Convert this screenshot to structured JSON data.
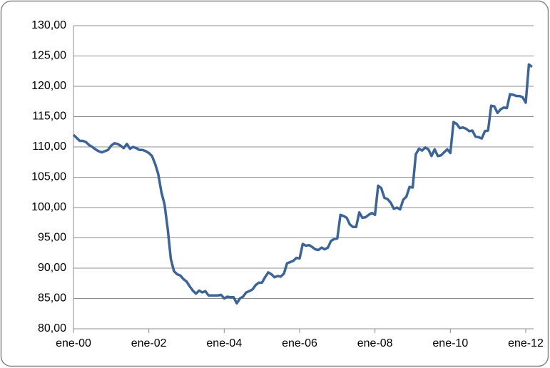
{
  "chart_data": {
    "type": "line",
    "categories": [
      "ene-00",
      null,
      null,
      null,
      null,
      null,
      null,
      null,
      null,
      null,
      null,
      null,
      null,
      null,
      null,
      null,
      null,
      null,
      null,
      null,
      null,
      null,
      null,
      null,
      "ene-02",
      null,
      null,
      null,
      null,
      null,
      null,
      null,
      null,
      null,
      null,
      null,
      null,
      null,
      null,
      null,
      null,
      null,
      null,
      null,
      null,
      null,
      null,
      null,
      "ene-04",
      null,
      null,
      null,
      null,
      null,
      null,
      null,
      null,
      null,
      null,
      null,
      null,
      null,
      null,
      null,
      null,
      null,
      null,
      null,
      null,
      null,
      null,
      null,
      "ene-06",
      null,
      null,
      null,
      null,
      null,
      null,
      null,
      null,
      null,
      null,
      null,
      null,
      null,
      null,
      null,
      null,
      null,
      null,
      null,
      null,
      null,
      null,
      null,
      "ene-08",
      null,
      null,
      null,
      null,
      null,
      null,
      null,
      null,
      null,
      null,
      null,
      null,
      null,
      null,
      null,
      null,
      null,
      null,
      null,
      null,
      null,
      null,
      null,
      "ene-10",
      null,
      null,
      null,
      null,
      null,
      null,
      null,
      null,
      null,
      null,
      null,
      null,
      null,
      null,
      null,
      null,
      null,
      null,
      null,
      null,
      null,
      null,
      null,
      "ene-12",
      null,
      null
    ],
    "values": [
      112,
      111.5,
      111,
      111,
      110.8,
      110.3,
      110,
      109.6,
      109.3,
      109.1,
      109.3,
      109.5,
      110.2,
      110.6,
      110.5,
      110.2,
      109.8,
      110.5,
      109.7,
      110,
      109.8,
      109.5,
      109.5,
      109.3,
      109,
      108.5,
      107.2,
      105.5,
      102.5,
      100.5,
      96.5,
      91.5,
      89.5,
      89,
      88.8,
      88.2,
      87.8,
      87,
      86.3,
      85.8,
      86.3,
      86,
      86.2,
      85.5,
      85.5,
      85.5,
      85.5,
      85.6,
      85,
      85.3,
      85.2,
      85.2,
      84.2,
      85,
      85.3,
      86,
      86.2,
      86.5,
      87.2,
      87.6,
      87.6,
      88.5,
      89.3,
      89,
      88.5,
      88.7,
      88.6,
      89.1,
      90.8,
      91,
      91.2,
      91.7,
      91.6,
      94,
      93.7,
      93.8,
      93.5,
      93.1,
      93,
      93.4,
      93.1,
      93.4,
      94.5,
      94.8,
      94.9,
      98.8,
      98.6,
      98.3,
      97.2,
      96.8,
      96.8,
      99.2,
      98.3,
      98.4,
      98.8,
      99.1,
      98.8,
      103.6,
      103.2,
      101.6,
      101.4,
      100.8,
      99.8,
      100,
      99.7,
      101.3,
      101.8,
      103.4,
      103.3,
      108.8,
      109.7,
      109.4,
      109.9,
      109.6,
      108.5,
      109.6,
      108.5,
      108.6,
      109.1,
      109.6,
      109,
      114.1,
      113.8,
      113.1,
      113.2,
      113,
      112.6,
      112.7,
      111.7,
      111.6,
      111.4,
      112.6,
      112.7,
      116.8,
      116.7,
      115.6,
      116.2,
      116.5,
      116.4,
      118.7,
      118.6,
      118.4,
      118.4,
      118.2,
      117.3,
      123.6,
      123.2
    ],
    "color": "#3c6496",
    "ylim": [
      80,
      130
    ],
    "yticks": [
      {
        "value": 80,
        "label": "80,00"
      },
      {
        "value": 85,
        "label": "85,00"
      },
      {
        "value": 90,
        "label": "90,00"
      },
      {
        "value": 95,
        "label": "95,00"
      },
      {
        "value": 100,
        "label": "100,00"
      },
      {
        "value": 105,
        "label": "105,00"
      },
      {
        "value": 110,
        "label": "110,00"
      },
      {
        "value": 115,
        "label": "115,00"
      },
      {
        "value": 120,
        "label": "120,00"
      },
      {
        "value": 125,
        "label": "125,00"
      },
      {
        "value": 130,
        "label": "130,00"
      }
    ],
    "grid": true
  }
}
